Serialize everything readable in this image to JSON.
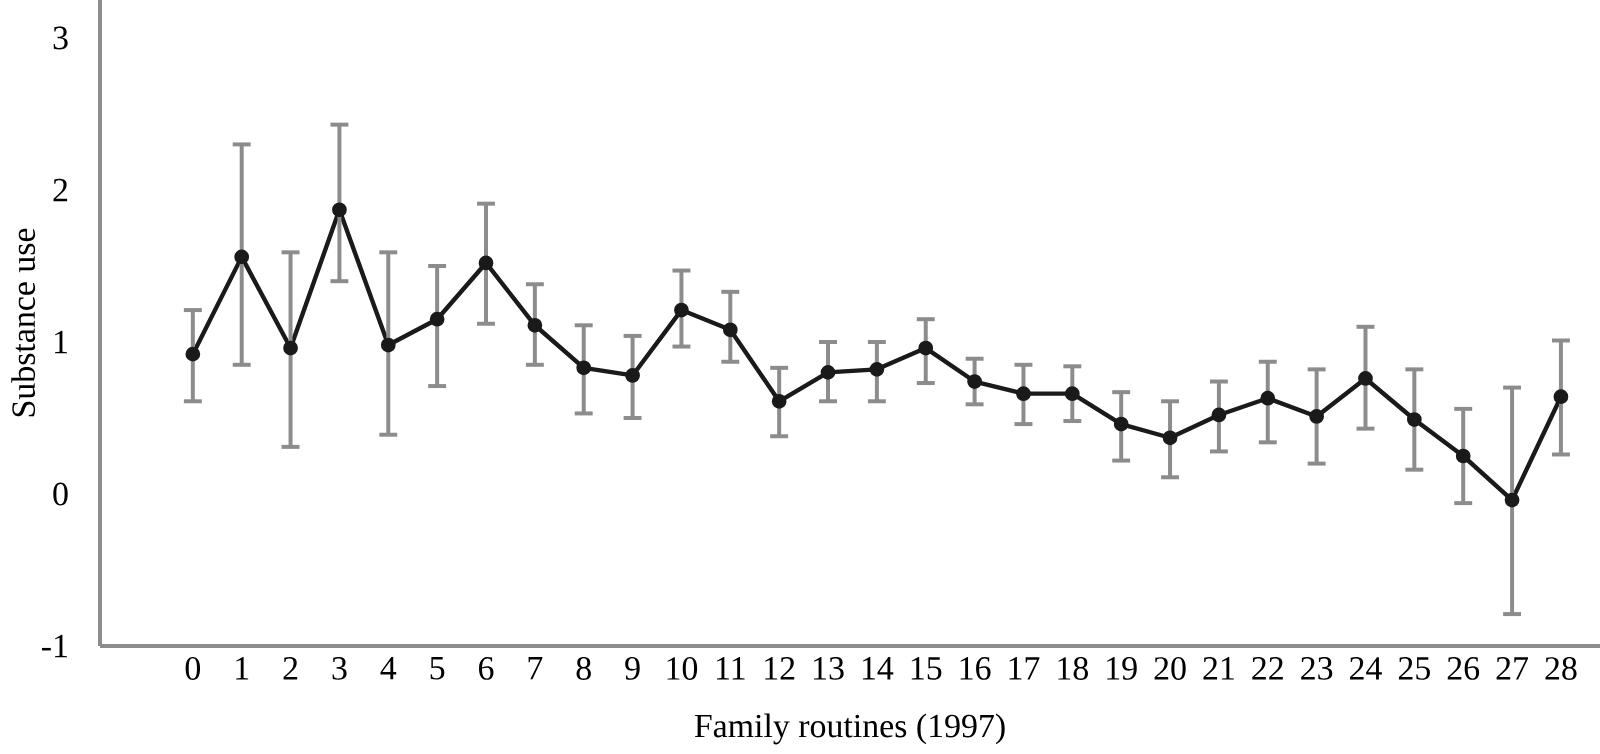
{
  "chart_data": {
    "type": "line",
    "xlabel": "Family routines (1997)",
    "ylabel": "Substance use",
    "x": [
      0,
      1,
      2,
      3,
      4,
      5,
      6,
      7,
      8,
      9,
      10,
      11,
      12,
      13,
      14,
      15,
      16,
      17,
      18,
      19,
      20,
      21,
      22,
      23,
      24,
      25,
      26,
      27,
      28
    ],
    "values": [
      0.92,
      1.56,
      0.96,
      1.87,
      0.98,
      1.15,
      1.52,
      1.11,
      0.83,
      0.78,
      1.21,
      1.08,
      0.61,
      0.8,
      0.82,
      0.96,
      0.74,
      0.66,
      0.66,
      0.46,
      0.37,
      0.52,
      0.63,
      0.51,
      0.76,
      0.49,
      0.25,
      -0.04,
      0.64
    ],
    "errors": [
      [
        0.61,
        1.21
      ],
      [
        0.85,
        2.3
      ],
      [
        0.31,
        1.59
      ],
      [
        1.4,
        2.43
      ],
      [
        0.39,
        1.59
      ],
      [
        0.71,
        1.5
      ],
      [
        1.12,
        1.91
      ],
      [
        0.85,
        1.38
      ],
      [
        0.53,
        1.11
      ],
      [
        0.5,
        1.04
      ],
      [
        0.97,
        1.47
      ],
      [
        0.87,
        1.33
      ],
      [
        0.38,
        0.83
      ],
      [
        0.61,
        1.0
      ],
      [
        0.61,
        1.0
      ],
      [
        0.73,
        1.15
      ],
      [
        0.59,
        0.89
      ],
      [
        0.46,
        0.85
      ],
      [
        0.48,
        0.84
      ],
      [
        0.22,
        0.67
      ],
      [
        0.11,
        0.61
      ],
      [
        0.28,
        0.74
      ],
      [
        0.34,
        0.87
      ],
      [
        0.2,
        0.82
      ],
      [
        0.43,
        1.1
      ],
      [
        0.16,
        0.82
      ],
      [
        -0.06,
        0.56
      ],
      [
        -0.79,
        0.7
      ],
      [
        0.26,
        1.01
      ]
    ],
    "color": "#1a1a1a",
    "marker": "circle",
    "xlim": [
      -1.9,
      28.8
    ],
    "xticks": [
      0,
      1,
      2,
      3,
      4,
      5,
      6,
      7,
      8,
      9,
      10,
      11,
      12,
      13,
      14,
      15,
      16,
      17,
      18,
      19,
      20,
      21,
      22,
      23,
      24,
      25,
      26,
      27,
      28
    ],
    "ylim": [
      -1,
      3.25
    ],
    "yticks": [
      -1,
      0,
      1,
      2,
      3
    ]
  }
}
